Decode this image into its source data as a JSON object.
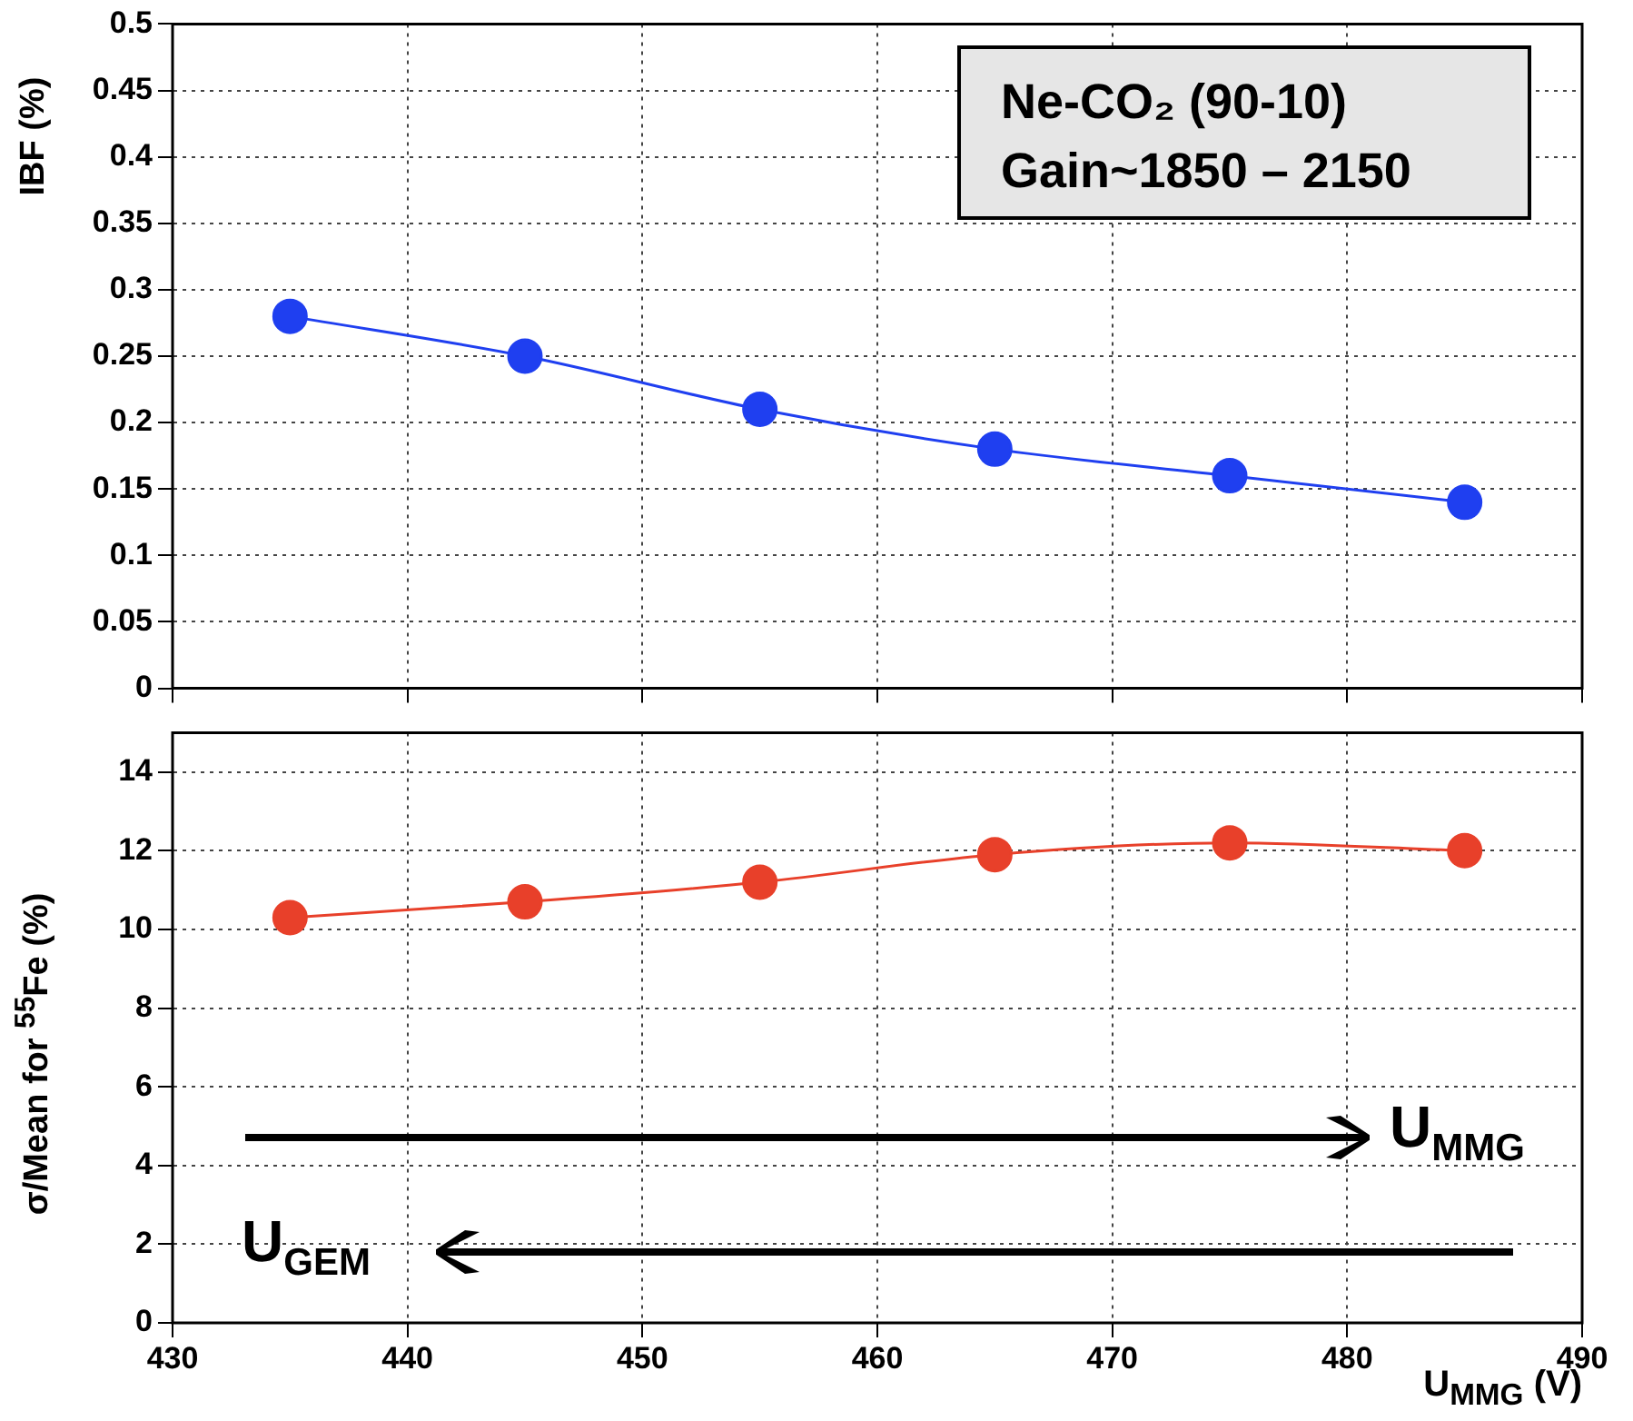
{
  "chart_data": [
    {
      "type": "line",
      "ylabel": "IBF (%)",
      "x": [
        435,
        445,
        455,
        465,
        475,
        485
      ],
      "series": [
        {
          "color": "#1f3ff0",
          "values": [
            0.28,
            0.25,
            0.21,
            0.18,
            0.16,
            0.14
          ]
        }
      ],
      "xlim": [
        430,
        490
      ],
      "xticks": [
        430,
        440,
        450,
        460,
        470,
        480,
        490
      ],
      "ylim": [
        0,
        0.5
      ],
      "yticks": [
        0,
        0.05,
        0.1,
        0.15,
        0.2,
        0.25,
        0.3,
        0.35,
        0.4,
        0.45,
        0.5
      ],
      "tick_labels": "y",
      "grid": true,
      "marker": "circle",
      "line_style": "solid",
      "legend": false,
      "annotations": [
        "Ne-CO₂ (90-10)",
        "Gain~1850 – 2150"
      ]
    },
    {
      "type": "line",
      "xlabel": "U$_{MMG}$ (V)",
      "ylabel": "σ/Mean for $^{55}$Fe (%)",
      "x": [
        435,
        445,
        455,
        465,
        475,
        485
      ],
      "series": [
        {
          "color": "#e8402a",
          "values": [
            10.3,
            10.7,
            11.2,
            11.9,
            12.2,
            12.0
          ]
        }
      ],
      "xlim": [
        430,
        490
      ],
      "xticks": [
        430,
        440,
        450,
        460,
        470,
        480,
        490
      ],
      "ylim": [
        0,
        15
      ],
      "yticks": [
        0,
        2,
        4,
        6,
        8,
        10,
        12,
        14
      ],
      "grid": true,
      "marker": "circle",
      "line_style": "solid",
      "legend": false,
      "annotations": [
        "U$_{MMG}$",
        "U$_{GEM}$"
      ]
    }
  ]
}
